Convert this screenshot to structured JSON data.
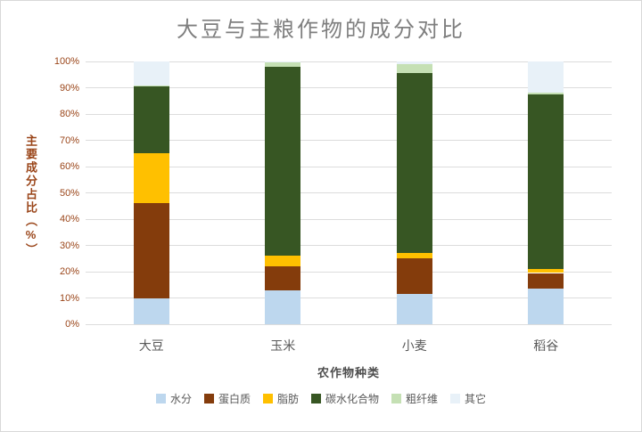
{
  "chart_data": {
    "type": "bar",
    "stacked": true,
    "title": "大豆与主粮作物的成分对比",
    "xlabel": "农作物种类",
    "ylabel": "主要成分占比（%）",
    "categories": [
      "大豆",
      "玉米",
      "小麦",
      "稻谷"
    ],
    "series": [
      {
        "name": "水分",
        "color": "#BDD7EE",
        "values": [
          10,
          13,
          11.5,
          13.5
        ]
      },
      {
        "name": "蛋白质",
        "color": "#843C0C",
        "values": [
          36,
          9,
          13.5,
          6
        ]
      },
      {
        "name": "脂肪",
        "color": "#FFC000",
        "values": [
          19,
          4,
          2,
          1.5
        ]
      },
      {
        "name": "碳水化合物",
        "color": "#375623",
        "values": [
          25.5,
          72,
          68.5,
          66.5
        ]
      },
      {
        "name": "粗纤维",
        "color": "#C5E0B4",
        "values": [
          0.5,
          1.5,
          3.5,
          0.5
        ]
      },
      {
        "name": "其它",
        "color": "#E8F1F8",
        "values": [
          9,
          0.5,
          1,
          12
        ]
      }
    ],
    "ylim": [
      0,
      100
    ],
    "yticks": [
      "0%",
      "10%",
      "20%",
      "30%",
      "40%",
      "50%",
      "60%",
      "70%",
      "80%",
      "90%",
      "100%"
    ],
    "grid": true,
    "legend_position": "bottom"
  },
  "colors": {
    "grid": "#dcdcdc",
    "title_text": "#7f7f7f",
    "y_axis_text": "#9a4519",
    "x_axis_text": "#595959"
  }
}
